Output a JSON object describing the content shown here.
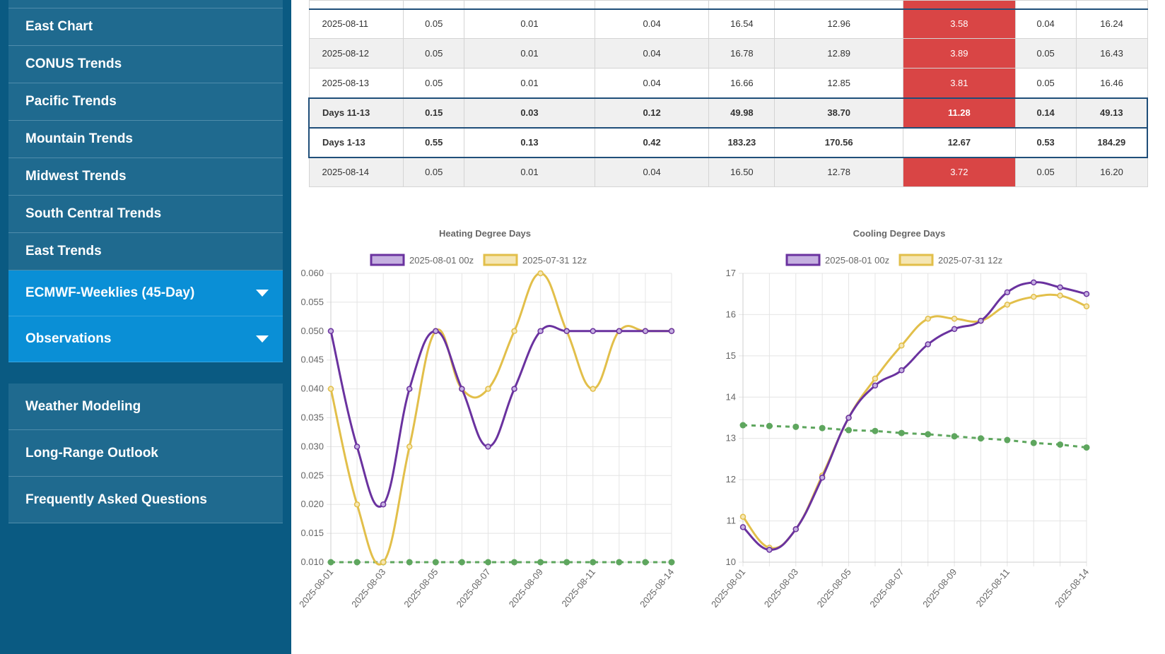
{
  "sidebar": {
    "items": [
      {
        "label": "East Chart"
      },
      {
        "label": "CONUS Trends"
      },
      {
        "label": "Pacific Trends"
      },
      {
        "label": "Mountain Trends"
      },
      {
        "label": "Midwest Trends"
      },
      {
        "label": "South Central Trends"
      },
      {
        "label": "East Trends"
      }
    ],
    "dropdowns": [
      {
        "label": "ECMWF-Weeklies (45-Day)"
      },
      {
        "label": "Observations"
      }
    ],
    "bottom_items": [
      {
        "label": "Weather Modeling"
      },
      {
        "label": "Long-Range Outlook"
      },
      {
        "label": "Frequently Asked Questions"
      }
    ]
  },
  "table": {
    "rows": [
      {
        "type": "data",
        "cells": [
          "2025-08-11",
          "0.05",
          "0.01",
          "0.04",
          "16.54",
          "12.96",
          "3.58",
          "0.04",
          "16.24"
        ]
      },
      {
        "type": "data",
        "cells": [
          "2025-08-12",
          "0.05",
          "0.01",
          "0.04",
          "16.78",
          "12.89",
          "3.89",
          "0.05",
          "16.43"
        ]
      },
      {
        "type": "data",
        "cells": [
          "2025-08-13",
          "0.05",
          "0.01",
          "0.04",
          "16.66",
          "12.85",
          "3.81",
          "0.05",
          "16.46"
        ]
      },
      {
        "type": "sum-first",
        "cells": [
          "Days 11-13",
          "0.15",
          "0.03",
          "0.12",
          "49.98",
          "38.70",
          "11.28",
          "0.14",
          "49.13"
        ]
      },
      {
        "type": "sum-second",
        "cells": [
          "Days 1-13",
          "0.55",
          "0.13",
          "0.42",
          "183.23",
          "170.56",
          "12.67",
          "0.53",
          "184.29"
        ]
      },
      {
        "type": "data",
        "cells": [
          "2025-08-14",
          "0.05",
          "0.01",
          "0.04",
          "16.50",
          "12.78",
          "3.72",
          "0.05",
          "16.20"
        ]
      }
    ]
  },
  "chart_data": [
    {
      "type": "line",
      "title": "Heating Degree Days",
      "x": [
        "2025-08-01",
        "2025-08-02",
        "2025-08-03",
        "2025-08-04",
        "2025-08-05",
        "2025-08-06",
        "2025-08-07",
        "2025-08-08",
        "2025-08-09",
        "2025-08-10",
        "2025-08-11",
        "2025-08-12",
        "2025-08-13",
        "2025-08-14"
      ],
      "xtick_labels": [
        "2025-08-01",
        "2025-08-03",
        "2025-08-05",
        "2025-08-07",
        "2025-08-09",
        "2025-08-11",
        "2025-08-14"
      ],
      "ylim": [
        0.01,
        0.06
      ],
      "yticks": [
        "0.060",
        "0.055",
        "0.050",
        "0.045",
        "0.040",
        "0.035",
        "0.030",
        "0.025",
        "0.020",
        "0.015",
        "0.010"
      ],
      "legend": "top",
      "grid": true,
      "series": [
        {
          "name": "2025-08-01 00z",
          "color": "#6a329f",
          "fill": "#c5b0e0",
          "values": [
            0.05,
            0.03,
            0.02,
            0.04,
            0.05,
            0.04,
            0.03,
            0.04,
            0.05,
            0.05,
            0.05,
            0.05,
            0.05,
            0.05
          ]
        },
        {
          "name": "2025-07-31 12z",
          "color": "#e2bf4a",
          "fill": "#f5e6b3",
          "values": [
            0.04,
            0.02,
            0.01,
            0.03,
            0.05,
            0.04,
            0.04,
            0.05,
            0.06,
            0.05,
            0.04,
            0.05,
            0.05,
            0.05
          ]
        },
        {
          "color": "#5ea65e",
          "dashed": true,
          "values": [
            0.01,
            0.01,
            0.01,
            0.01,
            0.01,
            0.01,
            0.01,
            0.01,
            0.01,
            0.01,
            0.01,
            0.01,
            0.01,
            0.01
          ]
        }
      ]
    },
    {
      "type": "line",
      "title": "Cooling Degree Days",
      "x": [
        "2025-08-01",
        "2025-08-02",
        "2025-08-03",
        "2025-08-04",
        "2025-08-05",
        "2025-08-06",
        "2025-08-07",
        "2025-08-08",
        "2025-08-09",
        "2025-08-10",
        "2025-08-11",
        "2025-08-12",
        "2025-08-13",
        "2025-08-14"
      ],
      "xtick_labels": [
        "2025-08-01",
        "2025-08-03",
        "2025-08-05",
        "2025-08-07",
        "2025-08-09",
        "2025-08-11",
        "2025-08-14"
      ],
      "ylim": [
        10,
        17
      ],
      "yticks": [
        "17",
        "16",
        "15",
        "14",
        "13",
        "12",
        "11",
        "10"
      ],
      "legend": "top",
      "grid": true,
      "series": [
        {
          "name": "2025-08-01 00z",
          "color": "#6a329f",
          "fill": "#c5b0e0",
          "values": [
            10.85,
            10.3,
            10.8,
            12.05,
            13.5,
            14.28,
            14.65,
            15.28,
            15.65,
            15.85,
            16.54,
            16.78,
            16.66,
            16.5
          ]
        },
        {
          "name": "2025-07-31 12z",
          "color": "#e2bf4a",
          "fill": "#f5e6b3",
          "values": [
            11.1,
            10.35,
            10.8,
            12.1,
            13.5,
            14.45,
            15.25,
            15.9,
            15.9,
            15.85,
            16.24,
            16.43,
            16.46,
            16.2
          ]
        },
        {
          "color": "#5ea65e",
          "dashed": true,
          "values": [
            13.32,
            13.3,
            13.28,
            13.25,
            13.2,
            13.18,
            13.13,
            13.1,
            13.05,
            13.0,
            12.96,
            12.89,
            12.85,
            12.78
          ]
        }
      ]
    }
  ]
}
